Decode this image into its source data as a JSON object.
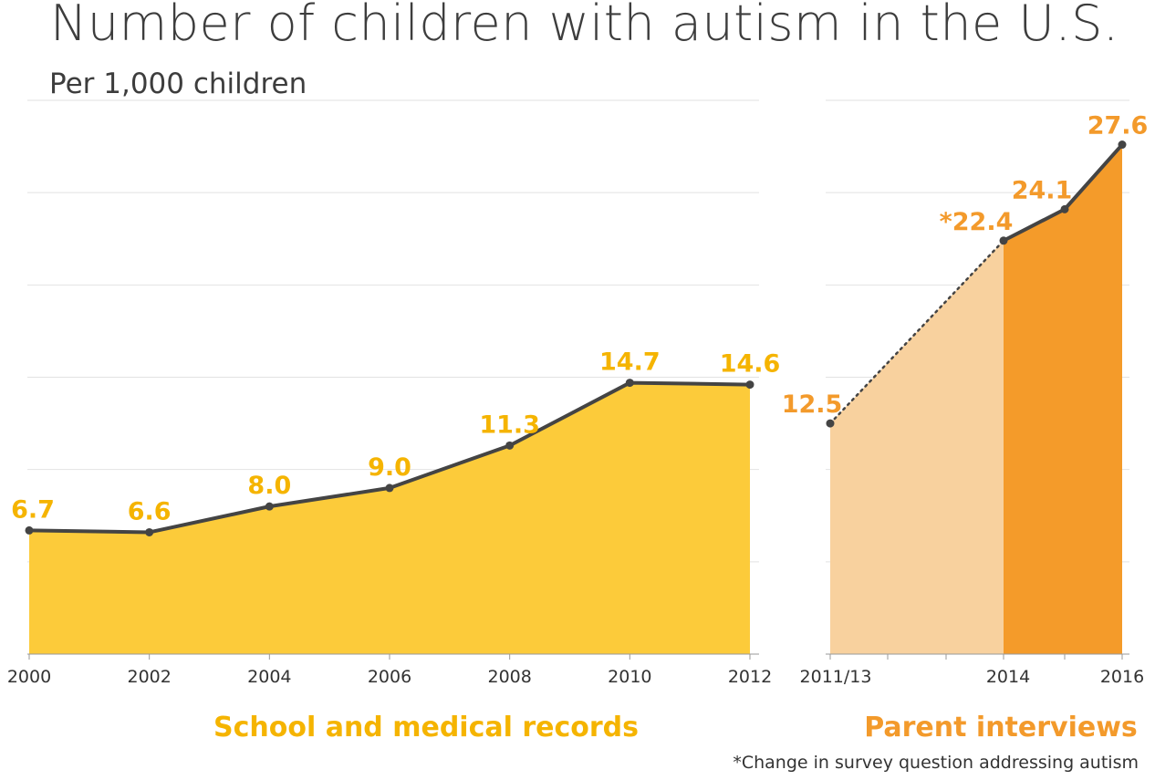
{
  "title": "Number of children with autism in the U.S.",
  "subtitle": "Per 1,000 children",
  "footnote": "*Change in survey question addressing autism",
  "colors": {
    "records_fill": "#fccb3a",
    "records_label": "#f5b400",
    "interviews_light": "#f8d19e",
    "interviews_dark": "#f49b2a",
    "interviews_label": "#f39a2b",
    "line": "#444444"
  },
  "chart_data": [
    {
      "type": "area",
      "panel_label": "School and medical records",
      "x": [
        "2000",
        "2002",
        "2004",
        "2006",
        "2008",
        "2010",
        "2012"
      ],
      "x_tick_labels": [
        "2000",
        "2002",
        "2004",
        "2006",
        "2008",
        "2010",
        "2012"
      ],
      "values": [
        6.7,
        6.6,
        8.0,
        9.0,
        11.3,
        14.7,
        14.6
      ],
      "data_labels": [
        "6.7",
        "6.6",
        "8.0",
        "9.0",
        "11.3",
        "14.7",
        "14.6"
      ],
      "ylim": [
        0,
        30
      ],
      "grid": true
    },
    {
      "type": "area",
      "panel_label": "Parent interviews",
      "x": [
        "2011/13",
        "2014",
        "2015",
        "2016"
      ],
      "x_tick_labels": [
        "2011/13",
        "2014",
        "2016"
      ],
      "values": [
        12.5,
        22.4,
        24.1,
        27.6
      ],
      "data_labels": [
        "12.5",
        "*22.4",
        "24.1",
        "27.6"
      ],
      "ylim": [
        0,
        30
      ],
      "grid": true
    }
  ]
}
